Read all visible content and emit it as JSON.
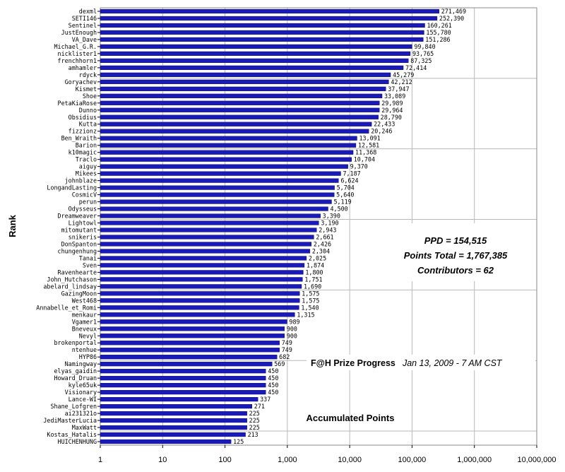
{
  "chart_data": {
    "type": "bar",
    "orientation": "horizontal",
    "x_scale": "log",
    "xlim": [
      1,
      10000000
    ],
    "x_ticks": [
      "1",
      "10",
      "100",
      "1,000",
      "10,000",
      "100,000",
      "1,000,000",
      "10,000,000"
    ],
    "xlabel": "Accumulated Points",
    "ylabel": "Rank",
    "grid": true,
    "bar_color": "#1a1ab8",
    "categories": [
      "dexml",
      "SETI146",
      "Sentinel",
      "JustEnough",
      "VA_Dave",
      "Michael_G.R.",
      "nicklister1",
      "frenchhorn1",
      "amhamler",
      "rdyck",
      "Goryachev",
      "Kismet",
      "Shoe",
      "PetaKiaRose",
      "Dunno",
      "Obsidius",
      "Kutta",
      "fizzionz",
      "Ben_Wraith",
      "Barion",
      "k10magic",
      "Traclo",
      "aiguy",
      "Mikees",
      "johnblaze",
      "LongandLasting",
      "CosmicV",
      "perun",
      "Odysseus",
      "Dreamweaver",
      "Lightowl",
      "mitomutant",
      "snikeris",
      "DonSpanton",
      "chungenhung",
      "Tanai",
      "Sven",
      "Ravenhearte",
      "John_Hutchason",
      "abelard_lindsay",
      "GazingMoon",
      "West468",
      "Annabelle_et_Romi",
      "menkaur",
      "Vgamer1",
      "Bneveux",
      "Nevyl",
      "brokenportal",
      "ntenhue",
      "HYP86",
      "Namingway",
      "elyas_gaidin",
      "Howard_Druan",
      "kyle65uk",
      "Visionary",
      "Lance-WI",
      "Shane_Lofgren",
      "ai231321o",
      "JediMasterLucia",
      "MaxWatt",
      "Kostas_Hatalis",
      "HUICHENHUNG"
    ],
    "values": [
      271469,
      252390,
      160261,
      155780,
      151286,
      99840,
      93765,
      87325,
      72414,
      45279,
      42212,
      37947,
      33089,
      29989,
      29964,
      28790,
      22433,
      20246,
      13091,
      12581,
      11368,
      10704,
      9370,
      7187,
      6624,
      5704,
      5640,
      5119,
      4500,
      3390,
      3190,
      2943,
      2661,
      2426,
      2304,
      2025,
      1874,
      1800,
      1751,
      1690,
      1575,
      1575,
      1540,
      1315,
      989,
      900,
      900,
      749,
      749,
      682,
      569,
      450,
      450,
      450,
      450,
      337,
      271,
      225,
      225,
      225,
      213,
      125
    ],
    "value_labels": [
      "271,469",
      "252,390",
      "160,261",
      "155,780",
      "151,286",
      "99,840",
      "93,765",
      "87,325",
      "72,414",
      "45,279",
      "42,212",
      "37,947",
      "33,089",
      "29,989",
      "29,964",
      "28,790",
      "22,433",
      "20,246",
      "13,091",
      "12,581",
      "11,368",
      "10,704",
      "9,370",
      "7,187",
      "6,624",
      "5,704",
      "5,640",
      "5,119",
      "4,500",
      "3,390",
      "3,190",
      "2,943",
      "2,661",
      "2,426",
      "2,304",
      "2,025",
      "1,874",
      "1,800",
      "1,751",
      "1,690",
      "1,575",
      "1,575",
      "1,540",
      "1,315",
      "989",
      "900",
      "900",
      "749",
      "749",
      "682",
      "569",
      "450",
      "450",
      "450",
      "450",
      "337",
      "271",
      "225",
      "225",
      "225",
      "213",
      "125"
    ]
  },
  "stats": {
    "ppd": "PPD = 154,515",
    "points_total": "Points Total = 1,767,385",
    "contributors": "Contributors = 62"
  },
  "annotation": {
    "title": "F@H Prize Progress",
    "date": "Jan 13, 2009 - 7 AM CST"
  }
}
